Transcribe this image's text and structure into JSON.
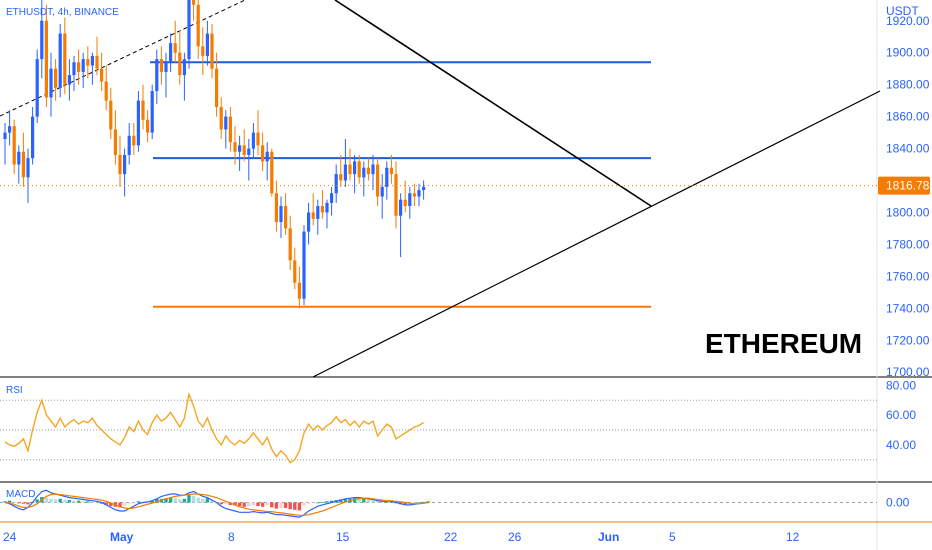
{
  "header": {
    "symbol_label": "ETHUSDT, 4h, BINANCE",
    "quote_currency": "USDT"
  },
  "watermark": "ETHEREUM",
  "price_axis": {
    "ticks": [
      "1920.00",
      "1900.00",
      "1880.00",
      "1860.00",
      "1840.00",
      "1820.00",
      "1800.00",
      "1780.00",
      "1760.00",
      "1740.00",
      "1720.00",
      "1700.00"
    ],
    "current_price_label": "1816.78"
  },
  "rsi_panel": {
    "label": "RSI",
    "ticks": [
      "80.00",
      "60.00",
      "40.00"
    ]
  },
  "macd_panel": {
    "label": "MACD",
    "ticks": [
      "0.00"
    ]
  },
  "time_axis": {
    "ticks": [
      "24",
      "May",
      "8",
      "15",
      "22",
      "26",
      "Jun",
      "5",
      "12"
    ],
    "bold_ticks": [
      "May",
      "Jun"
    ]
  },
  "colors": {
    "bull": "#2962ff",
    "bear": "#f57c00",
    "level_line": "#1e5bd8",
    "support_line": "#f57c00",
    "rsi_line": "#f5a623",
    "macd_pos_strong": "#26a69a",
    "macd_pos_weak": "#b2dfdb",
    "macd_neg_strong": "#ef5350",
    "macd_neg_weak": "#ffcdd2",
    "axis_text": "#2962ff"
  },
  "chart_data": {
    "type": "candlestick",
    "symbol": "ETHUSDT",
    "timeframe": "4h",
    "exchange": "BINANCE",
    "y_range_price": [
      1700,
      1930
    ],
    "last_price": 1816.78,
    "candles": [
      [
        1846,
        1856,
        1830,
        1850
      ],
      [
        1850,
        1864,
        1842,
        1854
      ],
      [
        1854,
        1858,
        1824,
        1830
      ],
      [
        1830,
        1842,
        1818,
        1838
      ],
      [
        1838,
        1850,
        1816,
        1822
      ],
      [
        1822,
        1840,
        1806,
        1834
      ],
      [
        1834,
        1866,
        1830,
        1860
      ],
      [
        1860,
        1902,
        1856,
        1896
      ],
      [
        1896,
        1934,
        1884,
        1920
      ],
      [
        1920,
        1930,
        1866,
        1872
      ],
      [
        1872,
        1900,
        1860,
        1890
      ],
      [
        1890,
        1896,
        1870,
        1878
      ],
      [
        1878,
        1918,
        1872,
        1912
      ],
      [
        1912,
        1922,
        1874,
        1880
      ],
      [
        1880,
        1896,
        1870,
        1886
      ],
      [
        1886,
        1898,
        1876,
        1894
      ],
      [
        1894,
        1902,
        1880,
        1888
      ],
      [
        1888,
        1900,
        1878,
        1896
      ],
      [
        1896,
        1904,
        1884,
        1892
      ],
      [
        1892,
        1900,
        1880,
        1898
      ],
      [
        1898,
        1910,
        1886,
        1890
      ],
      [
        1890,
        1900,
        1876,
        1882
      ],
      [
        1882,
        1892,
        1864,
        1870
      ],
      [
        1870,
        1878,
        1846,
        1852
      ],
      [
        1852,
        1864,
        1830,
        1836
      ],
      [
        1836,
        1848,
        1816,
        1824
      ],
      [
        1824,
        1840,
        1810,
        1836
      ],
      [
        1836,
        1856,
        1830,
        1848
      ],
      [
        1848,
        1856,
        1836,
        1842
      ],
      [
        1842,
        1876,
        1838,
        1870
      ],
      [
        1870,
        1880,
        1852,
        1858
      ],
      [
        1858,
        1864,
        1844,
        1850
      ],
      [
        1850,
        1880,
        1846,
        1876
      ],
      [
        1876,
        1902,
        1868,
        1896
      ],
      [
        1896,
        1904,
        1880,
        1888
      ],
      [
        1888,
        1900,
        1872,
        1894
      ],
      [
        1894,
        1912,
        1888,
        1906
      ],
      [
        1906,
        1920,
        1894,
        1900
      ],
      [
        1900,
        1914,
        1880,
        1886
      ],
      [
        1886,
        1900,
        1870,
        1896
      ],
      [
        1896,
        1950,
        1890,
        1940
      ],
      [
        1940,
        1950,
        1920,
        1930
      ],
      [
        1930,
        1936,
        1896,
        1904
      ],
      [
        1904,
        1916,
        1886,
        1898
      ],
      [
        1898,
        1920,
        1892,
        1912
      ],
      [
        1912,
        1918,
        1884,
        1890
      ],
      [
        1890,
        1900,
        1860,
        1866
      ],
      [
        1866,
        1872,
        1846,
        1852
      ],
      [
        1852,
        1864,
        1840,
        1860
      ],
      [
        1860,
        1866,
        1838,
        1844
      ],
      [
        1844,
        1854,
        1830,
        1838
      ],
      [
        1838,
        1848,
        1826,
        1842
      ],
      [
        1842,
        1852,
        1832,
        1836
      ],
      [
        1836,
        1846,
        1820,
        1840
      ],
      [
        1840,
        1856,
        1834,
        1850
      ],
      [
        1850,
        1864,
        1836,
        1842
      ],
      [
        1842,
        1850,
        1826,
        1832
      ],
      [
        1832,
        1844,
        1820,
        1838
      ],
      [
        1838,
        1840,
        1810,
        1812
      ],
      [
        1812,
        1820,
        1788,
        1794
      ],
      [
        1794,
        1810,
        1784,
        1804
      ],
      [
        1804,
        1812,
        1786,
        1790
      ],
      [
        1790,
        1798,
        1764,
        1770
      ],
      [
        1770,
        1778,
        1752,
        1756
      ],
      [
        1756,
        1766,
        1740,
        1746
      ],
      [
        1746,
        1792,
        1742,
        1788
      ],
      [
        1788,
        1806,
        1780,
        1800
      ],
      [
        1800,
        1812,
        1792,
        1796
      ],
      [
        1796,
        1808,
        1786,
        1804
      ],
      [
        1804,
        1814,
        1796,
        1800
      ],
      [
        1800,
        1808,
        1790,
        1806
      ],
      [
        1806,
        1816,
        1798,
        1812
      ],
      [
        1812,
        1830,
        1806,
        1824
      ],
      [
        1824,
        1836,
        1816,
        1820
      ],
      [
        1820,
        1846,
        1816,
        1830
      ],
      [
        1830,
        1840,
        1820,
        1824
      ],
      [
        1824,
        1836,
        1812,
        1832
      ],
      [
        1832,
        1836,
        1818,
        1822
      ],
      [
        1822,
        1832,
        1810,
        1828
      ],
      [
        1828,
        1834,
        1820,
        1824
      ],
      [
        1824,
        1836,
        1814,
        1830
      ],
      [
        1830,
        1834,
        1804,
        1810
      ],
      [
        1810,
        1824,
        1796,
        1816
      ],
      [
        1816,
        1832,
        1808,
        1828
      ],
      [
        1828,
        1836,
        1818,
        1824
      ],
      [
        1824,
        1832,
        1790,
        1798
      ],
      [
        1798,
        1812,
        1772,
        1808
      ],
      [
        1808,
        1820,
        1800,
        1804
      ],
      [
        1804,
        1816,
        1796,
        1812
      ],
      [
        1812,
        1818,
        1804,
        1810
      ],
      [
        1810,
        1818,
        1804,
        1814
      ],
      [
        1814,
        1820,
        1808,
        1816
      ]
    ],
    "horizontal_levels": [
      {
        "price": 1894,
        "role": "resistance"
      },
      {
        "price": 1834,
        "role": "resistance"
      },
      {
        "price": 1741,
        "role": "support"
      }
    ],
    "rsi": {
      "range": [
        20,
        80
      ],
      "levels": [
        70,
        50,
        30
      ],
      "values": [
        42,
        40,
        39,
        41,
        44,
        36,
        50,
        62,
        70,
        60,
        56,
        52,
        58,
        52,
        55,
        57,
        54,
        56,
        55,
        58,
        53,
        50,
        47,
        44,
        42,
        40,
        45,
        52,
        49,
        56,
        50,
        47,
        55,
        60,
        56,
        58,
        62,
        57,
        52,
        58,
        74,
        66,
        56,
        52,
        58,
        50,
        44,
        40,
        46,
        42,
        40,
        43,
        41,
        44,
        48,
        44,
        40,
        45,
        37,
        32,
        36,
        33,
        28,
        30,
        36,
        48,
        54,
        50,
        53,
        50,
        53,
        55,
        59,
        55,
        57,
        53,
        56,
        52,
        56,
        54,
        56,
        46,
        50,
        54,
        52,
        44,
        46,
        48,
        50,
        52,
        53,
        55
      ]
    },
    "macd": {
      "range": [
        -30,
        30
      ],
      "histogram": [
        2,
        3,
        1,
        -1,
        -2,
        -3,
        1,
        5,
        9,
        8,
        6,
        5,
        6,
        4,
        4,
        3,
        3,
        2,
        2,
        1,
        0,
        -2,
        -4,
        -6,
        -7,
        -8,
        -5,
        -2,
        -1,
        2,
        1,
        0,
        3,
        6,
        6,
        7,
        8,
        7,
        5,
        6,
        12,
        11,
        8,
        6,
        7,
        4,
        0,
        -3,
        -2,
        -4,
        -5,
        -6,
        -7,
        -6,
        -5,
        -6,
        -7,
        -5,
        -8,
        -10,
        -9,
        -9,
        -11,
        -12,
        -13,
        -5,
        -2,
        -1,
        0,
        1,
        2,
        3,
        4,
        5,
        6,
        6,
        7,
        6,
        6,
        5,
        4,
        2,
        1,
        1,
        1,
        -1,
        -3,
        -3,
        -2,
        -1,
        0,
        1,
        2
      ],
      "macd_line": [
        0,
        -2,
        -6,
        -10,
        -12,
        -8,
        0,
        10,
        18,
        20,
        16,
        14,
        12,
        10,
        8,
        7,
        6,
        5,
        4,
        3,
        2,
        0,
        -4,
        -8,
        -12,
        -14,
        -14,
        -10,
        -6,
        -2,
        0,
        1,
        3,
        6,
        10,
        12,
        14,
        14,
        12,
        12,
        16,
        18,
        14,
        10,
        8,
        4,
        0,
        -6,
        -10,
        -12,
        -14,
        -16,
        -16,
        -16,
        -15,
        -16,
        -17,
        -16,
        -18,
        -20,
        -20,
        -21,
        -22,
        -23,
        -24,
        -20,
        -14,
        -10,
        -6,
        -4,
        -2,
        0,
        2,
        4,
        6,
        7,
        8,
        8,
        7,
        6,
        5,
        3,
        2,
        2,
        2,
        0,
        -2,
        -4,
        -4,
        -3,
        -2,
        -1,
        0
      ],
      "signal_line": [
        0,
        -1,
        -3,
        -6,
        -8,
        -8,
        -6,
        -2,
        4,
        10,
        13,
        14,
        13,
        12,
        11,
        10,
        9,
        8,
        7,
        6,
        5,
        4,
        2,
        -1,
        -4,
        -7,
        -9,
        -10,
        -9,
        -7,
        -5,
        -3,
        -1,
        1,
        4,
        6,
        8,
        10,
        11,
        12,
        13,
        14,
        14,
        13,
        12,
        10,
        8,
        5,
        2,
        -1,
        -4,
        -7,
        -9,
        -11,
        -12,
        -13,
        -14,
        -15,
        -15,
        -16,
        -17,
        -18,
        -19,
        -20,
        -21,
        -21,
        -20,
        -18,
        -16,
        -14,
        -11,
        -8,
        -5,
        -2,
        1,
        3,
        5,
        6,
        7,
        7,
        6,
        5,
        4,
        3,
        3,
        2,
        1,
        0,
        -1,
        -2,
        -2,
        -1,
        0
      ]
    }
  }
}
